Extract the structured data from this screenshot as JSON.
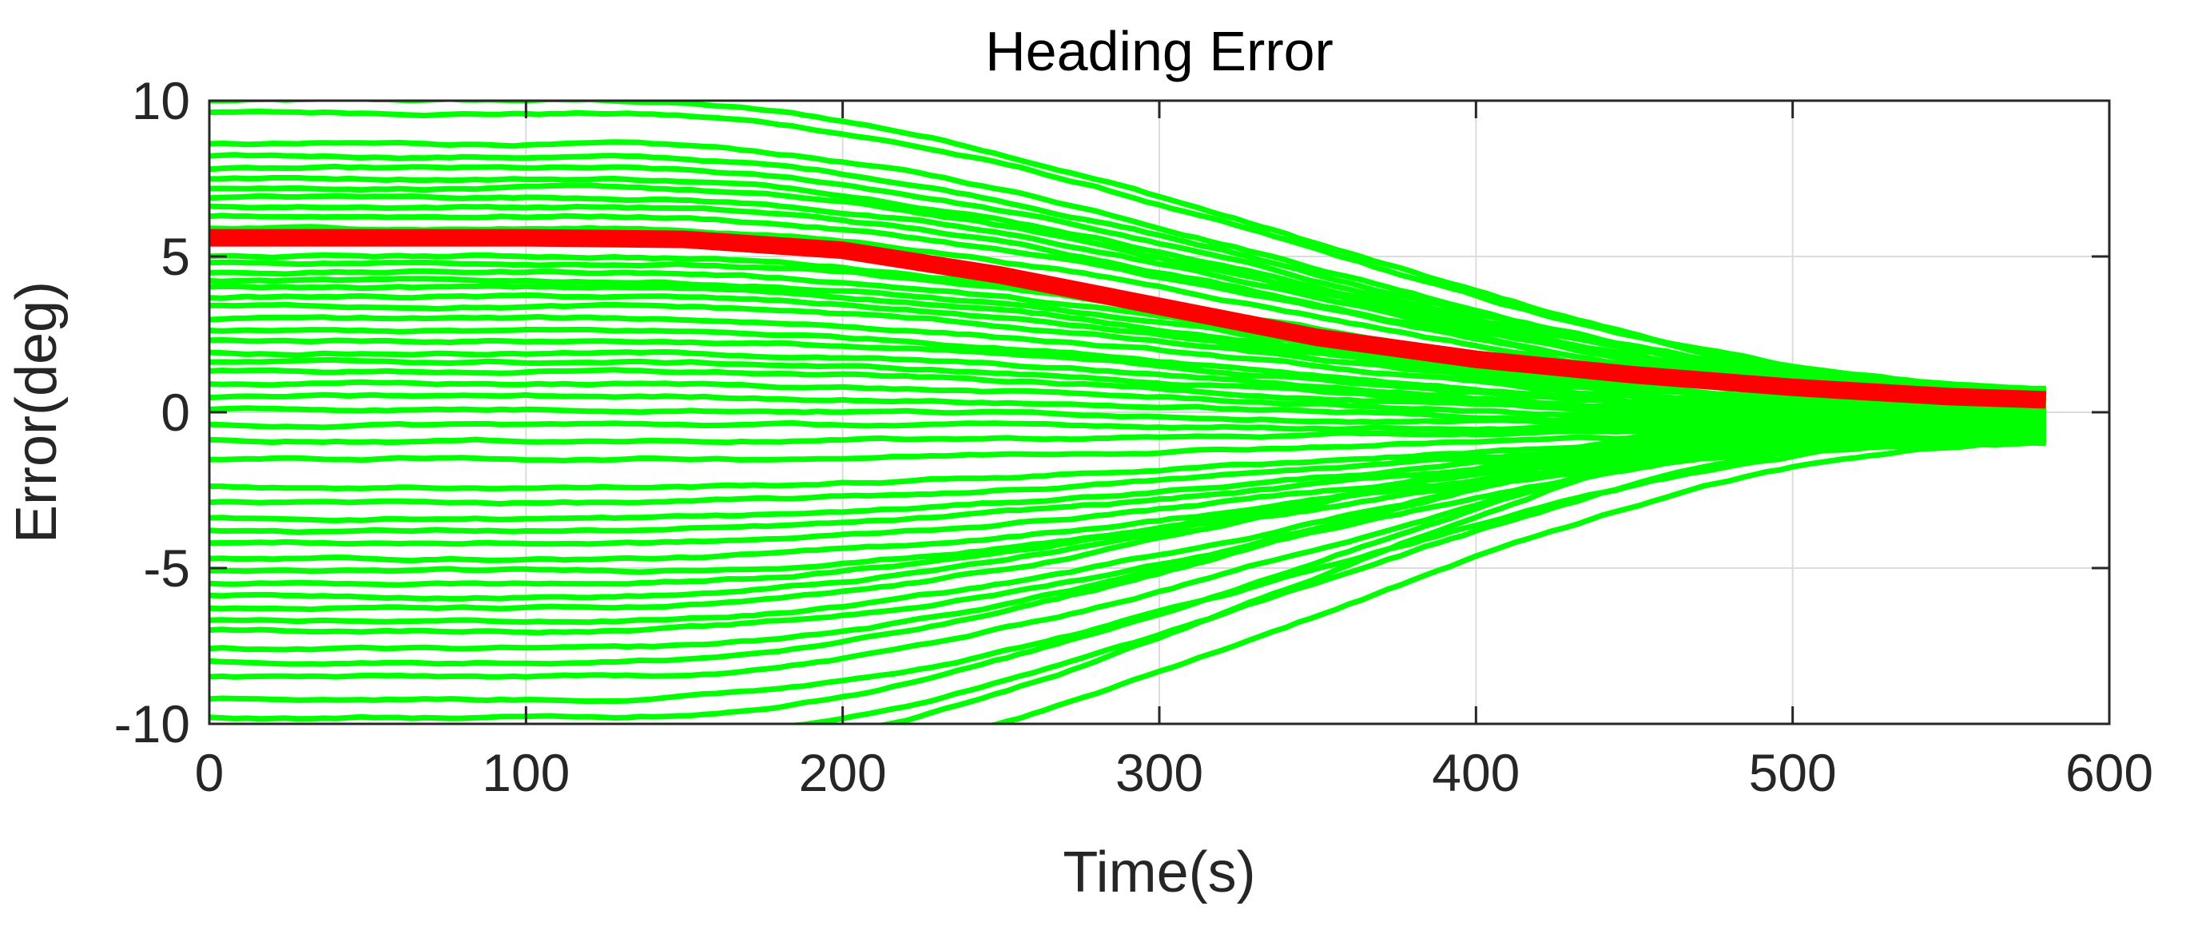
{
  "chart_data": {
    "type": "line",
    "title": "Heading Error",
    "xlabel": "Time(s)",
    "ylabel": "Error(deg)",
    "xlim": [
      0,
      600
    ],
    "ylim": [
      -10,
      10
    ],
    "xticks": [
      "0",
      "100",
      "200",
      "300",
      "400",
      "500",
      "600"
    ],
    "yticks": [
      "10",
      "5",
      "0",
      "-5",
      "-10"
    ],
    "grid": true,
    "x_end": 580,
    "series": [
      {
        "color": "#00ff00",
        "role": "ensemble",
        "initial_values": [
          10.0,
          9.6,
          8.6,
          8.2,
          7.8,
          7.5,
          7.2,
          6.9,
          6.6,
          6.3,
          5.9,
          5.0,
          4.8,
          4.5,
          4.2,
          4.0,
          3.7,
          3.4,
          3.0,
          2.6,
          2.3,
          1.9,
          1.6,
          1.3,
          0.9,
          0.5,
          0.1,
          -0.4,
          -0.9,
          -1.5,
          -2.4,
          -2.9,
          -3.4,
          -3.8,
          -4.2,
          -4.7,
          -5.1,
          -5.5,
          -5.9,
          -6.3,
          -6.7,
          -7.0,
          -7.6,
          -8.0,
          -8.5,
          -9.2,
          -9.8,
          -10.5,
          -11.2,
          -12.0
        ],
        "final_values": [
          0.8,
          0.75,
          0.7,
          0.65,
          0.6,
          0.55,
          0.5,
          0.45,
          0.4,
          0.35,
          0.3,
          0.25,
          0.2,
          0.15,
          0.1,
          0.05,
          0.0,
          -0.05,
          -0.1,
          -0.15,
          -0.2,
          -0.25,
          -0.3,
          -0.35,
          -0.4,
          -0.45,
          -0.5,
          -0.55,
          -0.6,
          -0.65,
          -0.7,
          -0.75,
          -0.8,
          -0.85,
          -0.9,
          -0.95,
          -1.0,
          -0.1,
          0.2,
          0.4,
          -0.3,
          -0.6,
          0.1,
          0.5,
          -0.2,
          -0.8,
          0.3,
          -0.5,
          0.6,
          -1.0
        ]
      },
      {
        "color": "#ff0000",
        "role": "mean",
        "x": [
          0,
          100,
          150,
          200,
          250,
          300,
          350,
          400,
          450,
          500,
          550,
          580
        ],
        "y": [
          5.6,
          5.6,
          5.55,
          5.2,
          4.4,
          3.4,
          2.4,
          1.7,
          1.2,
          0.8,
          0.5,
          0.4
        ]
      }
    ]
  }
}
